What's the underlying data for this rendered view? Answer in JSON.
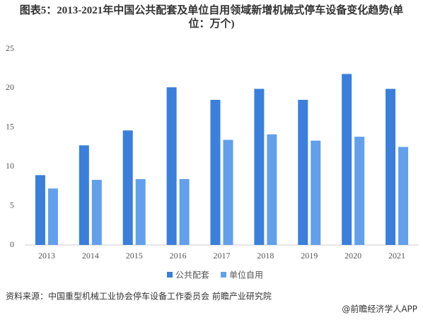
{
  "chart_data": {
    "type": "bar",
    "title": "图表5：2013-2021年中国公共配套及单位自用领域新增机械式停车设备变化趋势(单位：万个)",
    "categories": [
      "2013",
      "2014",
      "2015",
      "2016",
      "2017",
      "2018",
      "2019",
      "2020",
      "2021"
    ],
    "series": [
      {
        "name": "公共配套",
        "color": "#3a7fdb",
        "values": [
          8.9,
          12.7,
          14.6,
          20.1,
          18.5,
          19.9,
          18.5,
          21.8,
          19.9
        ]
      },
      {
        "name": "单位自用",
        "color": "#62a0ec",
        "values": [
          7.2,
          8.3,
          8.4,
          8.4,
          13.4,
          14.1,
          13.3,
          13.8,
          12.5
        ]
      }
    ],
    "ylim": [
      0,
      25
    ],
    "yticks": [
      0,
      5,
      10,
      15,
      20,
      25
    ],
    "grid": false,
    "source": "资料来源：中国重型机械工业协会停车设备工作委员会 前瞻产业研究院",
    "credit": "@前瞻经济学人APP"
  }
}
